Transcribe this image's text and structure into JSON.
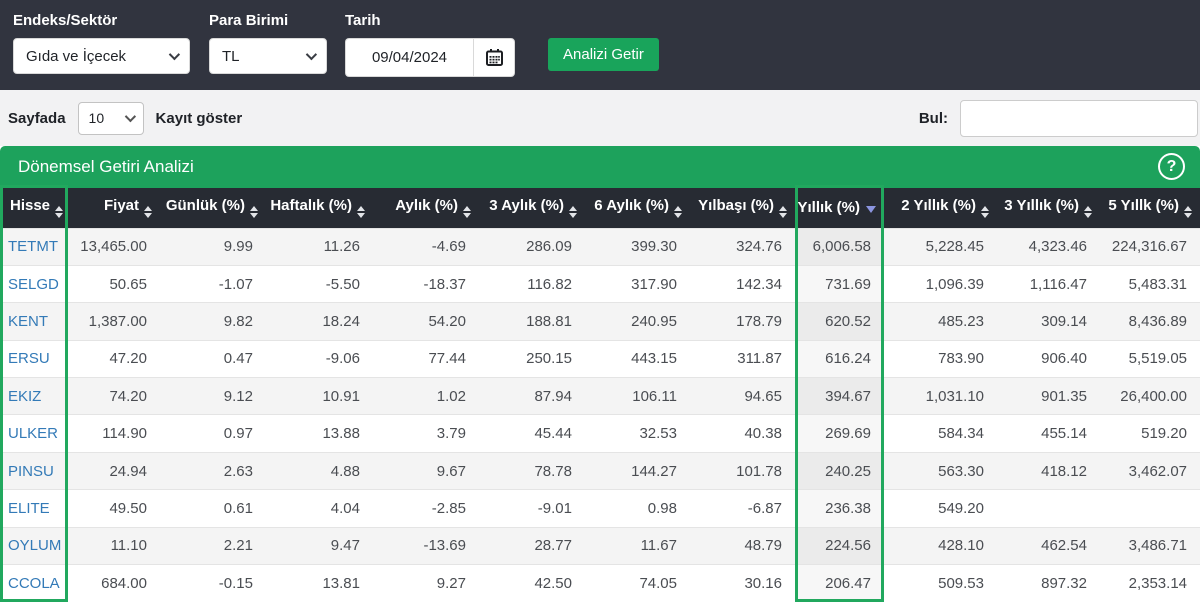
{
  "filters": {
    "endeks_label": "Endeks/Sektör",
    "endeks_value": "Gıda ve İçecek",
    "para_label": "Para Birimi",
    "para_value": "TL",
    "tarih_label": "Tarih",
    "tarih_value": "09/04/2024",
    "submit_label": "Analizi Getir"
  },
  "controls": {
    "page_size_prefix": "Sayfada",
    "page_size_value": "10",
    "page_size_suffix": "Kayıt göster",
    "search_label": "Bul:",
    "search_value": ""
  },
  "panel": {
    "title": "Dönemsel Getiri Analizi",
    "help_glyph": "?"
  },
  "icons": {
    "chevron_down": "css-rotated-square",
    "calendar": "svg-calendar-grid",
    "help": "circled-question-mark",
    "sort_both": "up-down-triangles",
    "sort_desc": "down-triangle"
  },
  "colors": {
    "topbar_bg": "#31343f",
    "table_header_bg": "#272b33",
    "accent_green": "#1da25c",
    "highlight_green": "#21a85e",
    "link_blue": "#337ab7",
    "sorted_arrow": "#8b95e0",
    "row_stripe": "#f4f4f4"
  },
  "table": {
    "columns": [
      "Hisse",
      "Fiyat",
      "Günlük (%)",
      "Haftalık (%)",
      "Aylık (%)",
      "3 Aylık (%)",
      "6 Aylık (%)",
      "Yılbaşı (%)",
      "Yıllık (%)",
      "2 Yıllık (%)",
      "3 Yıllık (%)",
      "5 Yıllk (%)"
    ],
    "sorted_column_index": 8,
    "sort_direction": "desc",
    "rows": [
      [
        "TETMT",
        "13,465.00",
        "9.99",
        "11.26",
        "-4.69",
        "286.09",
        "399.30",
        "324.76",
        "6,006.58",
        "5,228.45",
        "4,323.46",
        "224,316.67"
      ],
      [
        "SELGD",
        "50.65",
        "-1.07",
        "-5.50",
        "-18.37",
        "116.82",
        "317.90",
        "142.34",
        "731.69",
        "1,096.39",
        "1,116.47",
        "5,483.31"
      ],
      [
        "KENT",
        "1,387.00",
        "9.82",
        "18.24",
        "54.20",
        "188.81",
        "240.95",
        "178.79",
        "620.52",
        "485.23",
        "309.14",
        "8,436.89"
      ],
      [
        "ERSU",
        "47.20",
        "0.47",
        "-9.06",
        "77.44",
        "250.15",
        "443.15",
        "311.87",
        "616.24",
        "783.90",
        "906.40",
        "5,519.05"
      ],
      [
        "EKIZ",
        "74.20",
        "9.12",
        "10.91",
        "1.02",
        "87.94",
        "106.11",
        "94.65",
        "394.67",
        "1,031.10",
        "901.35",
        "26,400.00"
      ],
      [
        "ULKER",
        "114.90",
        "0.97",
        "13.88",
        "3.79",
        "45.44",
        "32.53",
        "40.38",
        "269.69",
        "584.34",
        "455.14",
        "519.20"
      ],
      [
        "PINSU",
        "24.94",
        "2.63",
        "4.88",
        "9.67",
        "78.78",
        "144.27",
        "101.78",
        "240.25",
        "563.30",
        "418.12",
        "3,462.07"
      ],
      [
        "ELITE",
        "49.50",
        "0.61",
        "4.04",
        "-2.85",
        "-9.01",
        "0.98",
        "-6.87",
        "236.38",
        "549.20",
        "",
        ""
      ],
      [
        "OYLUM",
        "11.10",
        "2.21",
        "9.47",
        "-13.69",
        "28.77",
        "11.67",
        "48.79",
        "224.56",
        "428.10",
        "462.54",
        "3,486.71"
      ],
      [
        "CCOLA",
        "684.00",
        "-0.15",
        "13.81",
        "9.27",
        "42.50",
        "74.05",
        "30.16",
        "206.47",
        "509.53",
        "897.32",
        "2,353.14"
      ]
    ]
  }
}
